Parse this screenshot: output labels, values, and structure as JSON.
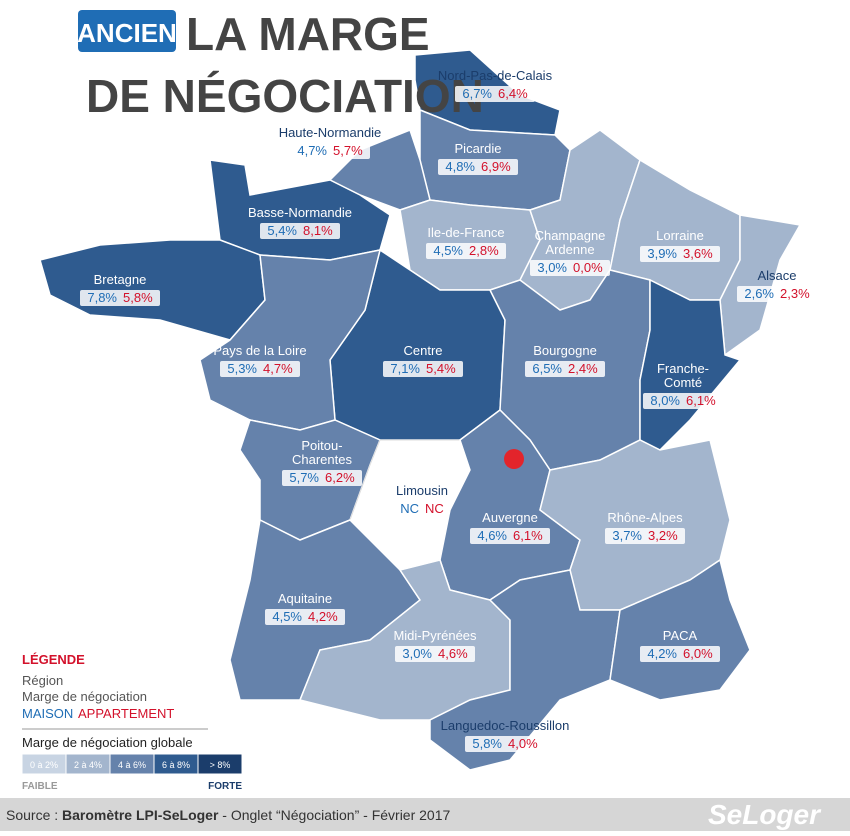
{
  "header": {
    "badge": "ANCIEN",
    "title_lines": [
      "LA MARGE",
      "DE NÉGOCIATION"
    ]
  },
  "regions": [
    {
      "name_lines": [
        "Nord-Pas-de-Calais"
      ],
      "maison": "6,7%",
      "appartement": "6,4%"
    },
    {
      "name_lines": [
        "Picardie"
      ],
      "maison": "4,8%",
      "appartement": "6,9%"
    },
    {
      "name_lines": [
        "Haute-Normandie"
      ],
      "maison": "4,7%",
      "appartement": "5,7%"
    },
    {
      "name_lines": [
        "Basse-Normandie"
      ],
      "maison": "5,4%",
      "appartement": "8,1%"
    },
    {
      "name_lines": [
        "Bretagne"
      ],
      "maison": "7,8%",
      "appartement": "5,8%"
    },
    {
      "name_lines": [
        "Ile-de-France"
      ],
      "maison": "4,5%",
      "appartement": "2,8%"
    },
    {
      "name_lines": [
        "Champagne",
        "Ardenne"
      ],
      "maison": "3,0%",
      "appartement": "0,0%"
    },
    {
      "name_lines": [
        "Lorraine"
      ],
      "maison": "3,9%",
      "appartement": "3,6%"
    },
    {
      "name_lines": [
        "Alsace"
      ],
      "maison": "2,6%",
      "appartement": "2,3%"
    },
    {
      "name_lines": [
        "Centre"
      ],
      "maison": "7,1%",
      "appartement": "5,4%"
    },
    {
      "name_lines": [
        "Pays de la Loire"
      ],
      "maison": "5,3%",
      "appartement": "4,7%"
    },
    {
      "name_lines": [
        "Bourgogne"
      ],
      "maison": "6,5%",
      "appartement": "2,4%"
    },
    {
      "name_lines": [
        "Franche-",
        "Comté"
      ],
      "maison": "8,0%",
      "appartement": "6,1%"
    },
    {
      "name_lines": [
        "Poitou-",
        "Charentes"
      ],
      "maison": "5,7%",
      "appartement": "6,2%"
    },
    {
      "name_lines": [
        "Limousin"
      ],
      "maison": "NC",
      "appartement": "NC"
    },
    {
      "name_lines": [
        "Auvergne"
      ],
      "maison": "4,6%",
      "appartement": "6,1%"
    },
    {
      "name_lines": [
        "Rhône-Alpes"
      ],
      "maison": "3,7%",
      "appartement": "3,2%"
    },
    {
      "name_lines": [
        "Aquitaine"
      ],
      "maison": "4,5%",
      "appartement": "4,2%"
    },
    {
      "name_lines": [
        "Midi-Pyrénées"
      ],
      "maison": "3,0%",
      "appartement": "4,6%"
    },
    {
      "name_lines": [
        "Languedoc-Roussillon"
      ],
      "maison": "5,8%",
      "appartement": "4,0%"
    },
    {
      "name_lines": [
        "PACA"
      ],
      "maison": "4,2%",
      "appartement": "6,0%"
    }
  ],
  "legend": {
    "title": "LÉGENDE",
    "region": "Région",
    "marge": "Marge de négociation",
    "maison": "MAISON",
    "appartement": "APPARTEMENT",
    "scale_title": "Marge de négociation globale",
    "scale": [
      "0 à 2%",
      "2 à 4%",
      "4 à 6%",
      "6 à 8%",
      "> 8%"
    ],
    "low": "FAIBLE",
    "high": "FORTE"
  },
  "footer": {
    "source_prefix": "Source : ",
    "source_bold": "Baromètre LPI-SeLoger",
    "source_rest": " - Onglet “Négociation” - Février 2017",
    "logo": "SeLoger"
  }
}
